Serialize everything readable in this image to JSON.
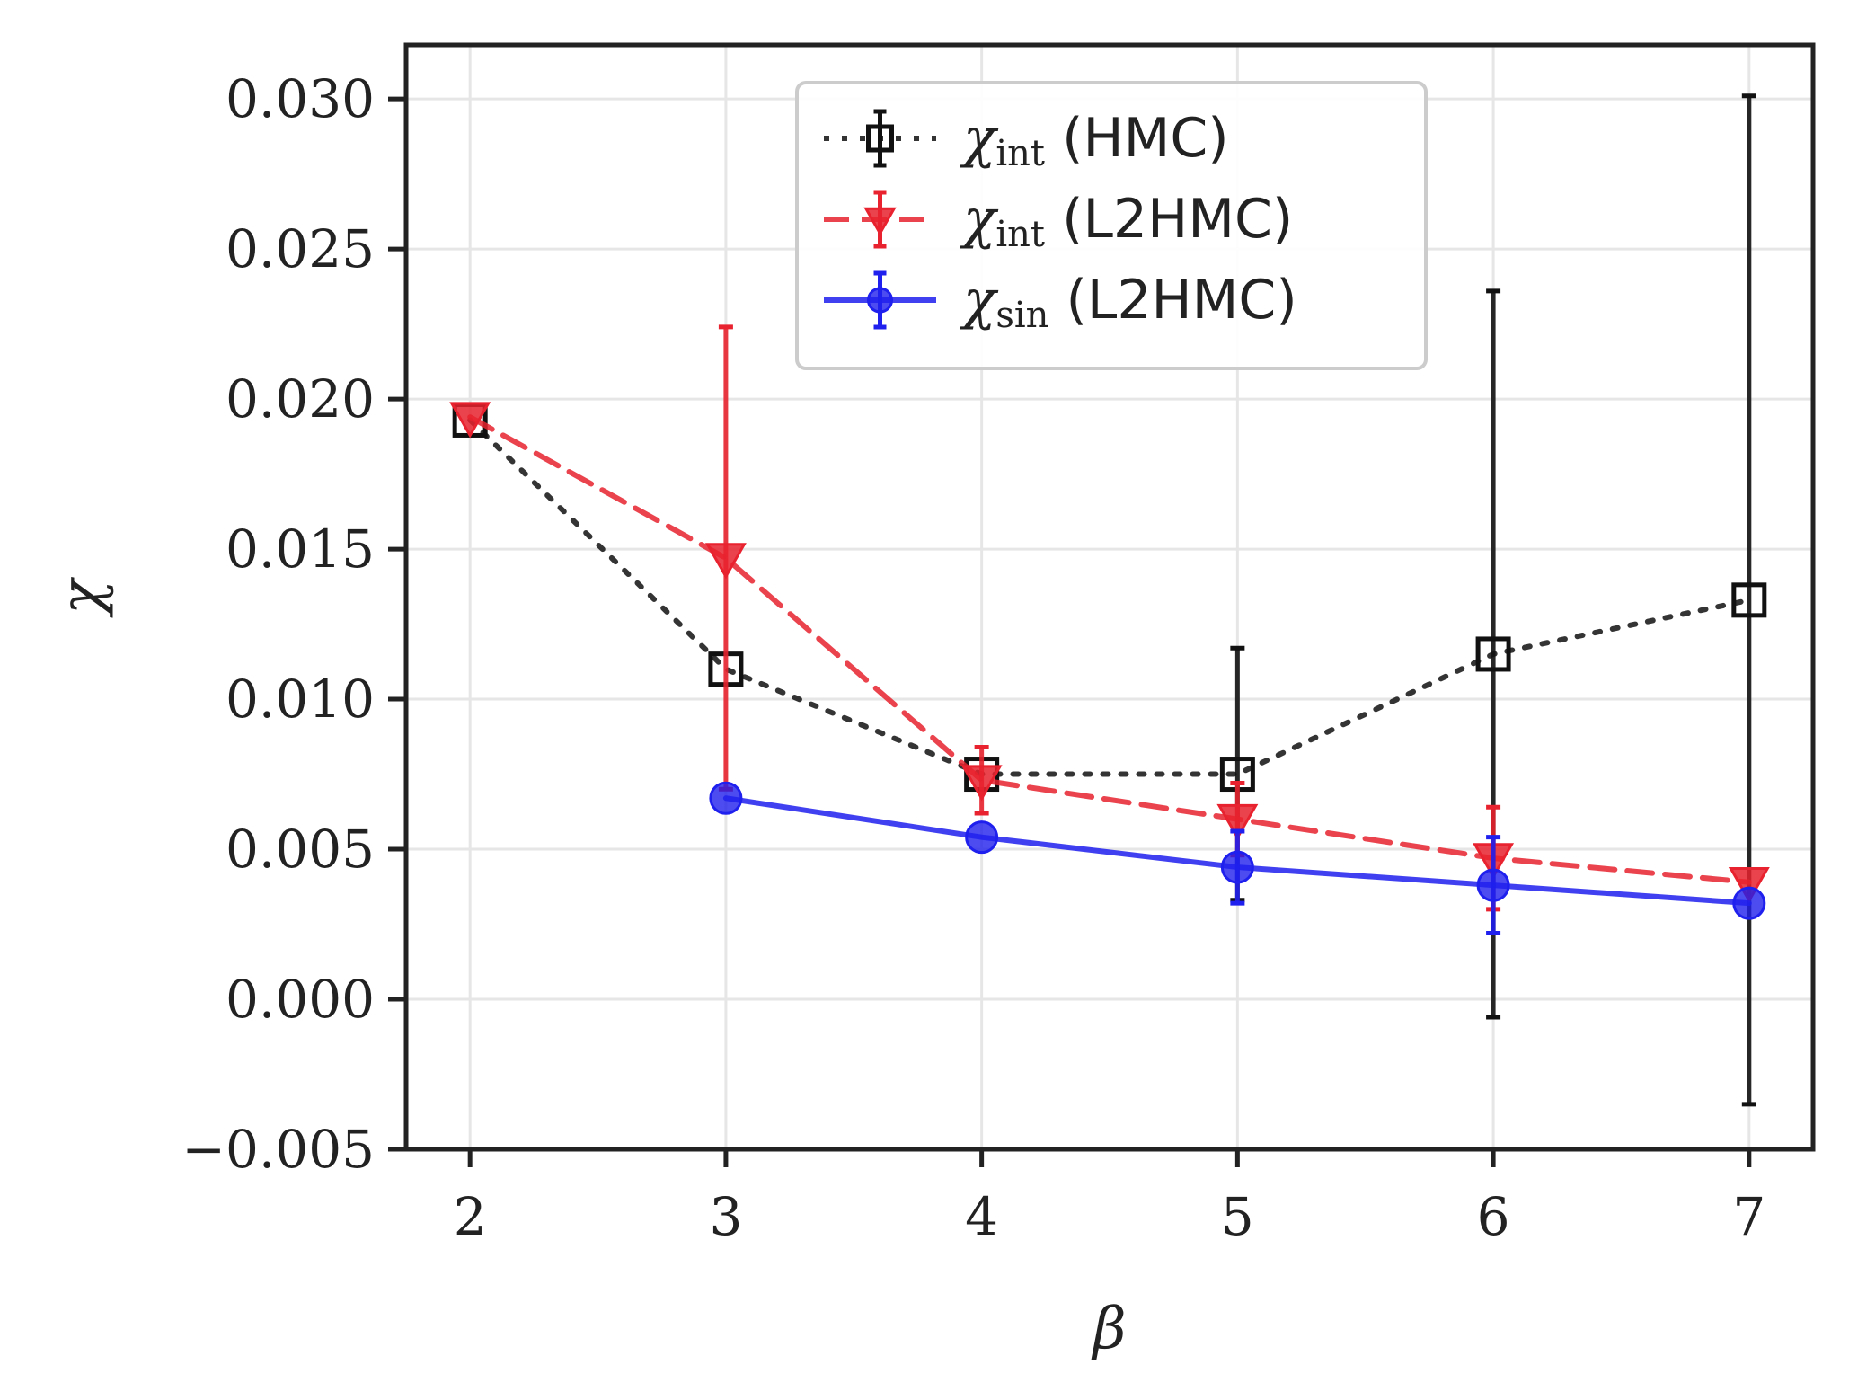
{
  "chart_data": {
    "type": "line",
    "xlabel": "β",
    "ylabel": "χ",
    "title": "",
    "xlim": [
      1.75,
      7.25
    ],
    "ylim": [
      -0.005,
      0.0318
    ],
    "xticks": [
      "2",
      "3",
      "4",
      "5",
      "6",
      "7"
    ],
    "yticks": [
      "−0.005",
      "0.000",
      "0.005",
      "0.010",
      "0.015",
      "0.020",
      "0.025",
      "0.030"
    ],
    "grid": true,
    "legend_position": "top-center",
    "series": [
      {
        "name": "χint (HMC)",
        "legend_symbol": "χ",
        "legend_sub": "int",
        "legend_suffix": " (HMC)",
        "color": "#111111",
        "linestyle": "dotted",
        "marker": "square-open",
        "x": [
          2,
          3,
          4,
          5,
          6,
          7
        ],
        "y": [
          0.0193,
          0.011,
          0.0075,
          0.0075,
          0.0115,
          0.0133
        ],
        "yerr": [
          0.0,
          0.0,
          0.0,
          0.0042,
          0.0121,
          0.0168
        ]
      },
      {
        "name": "χint (L2HMC)",
        "legend_symbol": "χ",
        "legend_sub": "int",
        "legend_suffix": " (L2HMC)",
        "color": "#e8222e",
        "linestyle": "dashed",
        "marker": "triangle-down",
        "x": [
          2,
          3,
          4,
          5,
          6,
          7
        ],
        "y": [
          0.0194,
          0.0147,
          0.0073,
          0.006,
          0.0047,
          0.0039
        ],
        "yerr": [
          0.0,
          0.0077,
          0.0011,
          0.0012,
          0.0017,
          0.0
        ]
      },
      {
        "name": "χsin (L2HMC)",
        "legend_symbol": "χ",
        "legend_sub": "sin",
        "legend_suffix": " (L2HMC)",
        "color": "#1f1fee",
        "linestyle": "solid",
        "marker": "circle",
        "x": [
          3,
          4,
          5,
          6,
          7
        ],
        "y": [
          0.0067,
          0.0054,
          0.0044,
          0.0038,
          0.0032
        ],
        "yerr": [
          0.0,
          0.0,
          0.0012,
          0.0016,
          0.0
        ]
      }
    ]
  }
}
